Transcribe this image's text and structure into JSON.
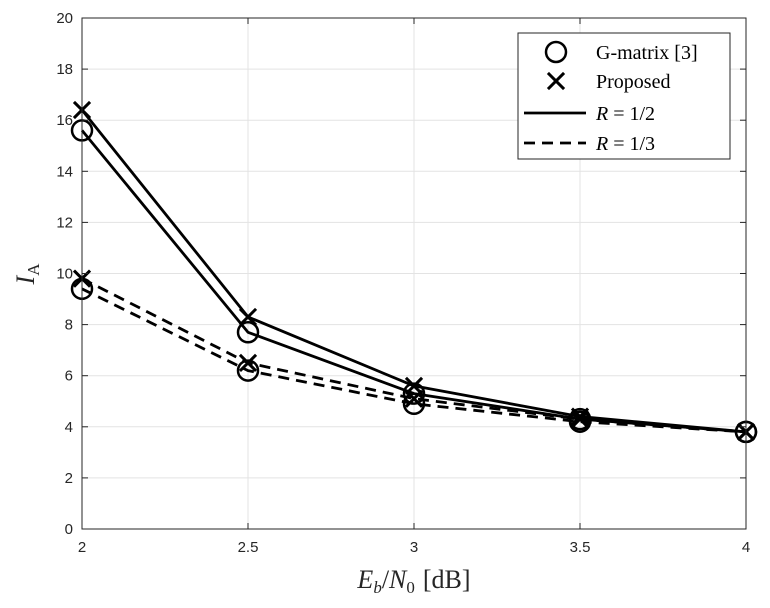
{
  "chart_data": {
    "type": "line",
    "title": "",
    "xlabel": {
      "main": "E",
      "sub1": "b",
      "slash": "/",
      "main2": "N",
      "sub2": "0",
      "unit": "[dB]"
    },
    "ylabel": {
      "main": "I",
      "sub": "A"
    },
    "x": [
      2,
      2.5,
      3,
      3.5,
      4
    ],
    "xlim": [
      2,
      4
    ],
    "ylim": [
      0,
      20
    ],
    "xticks": [
      "2",
      "2.5",
      "3",
      "3.5",
      "4"
    ],
    "yticks": [
      "0",
      "2",
      "4",
      "6",
      "8",
      "10",
      "12",
      "14",
      "16",
      "18",
      "20"
    ],
    "grid": true,
    "legend": {
      "position": "top-right",
      "entries": [
        {
          "label": "G-matrix [3]",
          "marker": "circle"
        },
        {
          "label": "Proposed",
          "marker": "x"
        },
        {
          "label": "R = 1/2",
          "line": "solid"
        },
        {
          "label": "R = 1/3",
          "line": "dashed"
        }
      ]
    },
    "series": [
      {
        "name": "G-matrix [3], R = 1/2",
        "marker": "circle",
        "line": "solid",
        "values": [
          15.6,
          7.7,
          5.3,
          4.3,
          3.8
        ]
      },
      {
        "name": "Proposed, R = 1/2",
        "marker": "x",
        "line": "solid",
        "values": [
          16.4,
          8.3,
          5.6,
          4.4,
          3.8
        ]
      },
      {
        "name": "G-matrix [3], R = 1/3",
        "marker": "circle",
        "line": "dashed",
        "values": [
          9.4,
          6.2,
          4.9,
          4.2,
          3.8
        ]
      },
      {
        "name": "Proposed, R = 1/3",
        "marker": "x",
        "line": "dashed",
        "values": [
          9.8,
          6.5,
          5.1,
          4.3,
          3.8
        ]
      }
    ]
  }
}
